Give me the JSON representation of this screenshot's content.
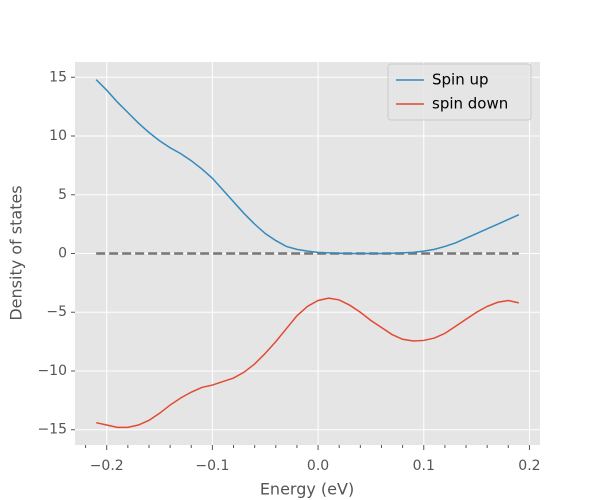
{
  "chart_data": {
    "type": "line",
    "xlabel": "Energy (eV)",
    "ylabel": "Density of states",
    "x": [
      -0.21,
      -0.2,
      -0.19,
      -0.18,
      -0.17,
      -0.16,
      -0.15,
      -0.14,
      -0.13,
      -0.12,
      -0.11,
      -0.1,
      -0.09,
      -0.08,
      -0.07,
      -0.06,
      -0.05,
      -0.04,
      -0.03,
      -0.02,
      -0.01,
      0.0,
      0.01,
      0.02,
      0.03,
      0.04,
      0.05,
      0.06,
      0.07,
      0.08,
      0.09,
      0.1,
      0.11,
      0.12,
      0.13,
      0.14,
      0.15,
      0.16,
      0.17,
      0.18,
      0.19
    ],
    "series": [
      {
        "name": "Spin up",
        "color": "#348ABD",
        "values": [
          14.8,
          13.9,
          12.9,
          12.0,
          11.1,
          10.3,
          9.6,
          9.0,
          8.5,
          7.9,
          7.2,
          6.4,
          5.4,
          4.4,
          3.4,
          2.5,
          1.7,
          1.1,
          0.6,
          0.35,
          0.2,
          0.1,
          0.05,
          0.02,
          0.0,
          0.0,
          0.0,
          0.0,
          0.02,
          0.05,
          0.1,
          0.2,
          0.35,
          0.6,
          0.9,
          1.3,
          1.7,
          2.1,
          2.5,
          2.9,
          3.3
        ]
      },
      {
        "name": "spin down",
        "color": "#E24A33",
        "values": [
          -14.4,
          -14.6,
          -14.8,
          -14.8,
          -14.6,
          -14.2,
          -13.6,
          -12.9,
          -12.3,
          -11.8,
          -11.4,
          -11.2,
          -10.9,
          -10.6,
          -10.1,
          -9.4,
          -8.5,
          -7.5,
          -6.4,
          -5.3,
          -4.5,
          -4.0,
          -3.8,
          -3.95,
          -4.4,
          -5.0,
          -5.7,
          -6.3,
          -6.9,
          -7.3,
          -7.45,
          -7.4,
          -7.2,
          -6.8,
          -6.2,
          -5.6,
          -5.0,
          -4.5,
          -4.15,
          -4.0,
          -4.2
        ]
      }
    ],
    "reference_line": {
      "y": 0,
      "x": [
        -0.21,
        0.19
      ],
      "color": "#777777",
      "style": "dashed"
    },
    "xlim": [
      -0.23,
      0.21
    ],
    "ylim": [
      -16.3,
      16.3
    ],
    "xticks": [
      {
        "value": -0.2,
        "label": "−0.2"
      },
      {
        "value": -0.1,
        "label": "−0.1"
      },
      {
        "value": 0,
        "label": "0.0"
      },
      {
        "value": 0.1,
        "label": "0.1"
      },
      {
        "value": 0.2,
        "label": "0.2"
      }
    ],
    "xminorticks": [
      -0.22,
      -0.18,
      -0.16,
      -0.14,
      -0.12,
      -0.08,
      -0.06,
      -0.04,
      -0.02,
      0.02,
      0.04,
      0.06,
      0.08,
      0.12,
      0.14,
      0.16,
      0.18
    ],
    "yticks": [
      {
        "value": -15,
        "label": "−15"
      },
      {
        "value": -10,
        "label": "−10"
      },
      {
        "value": -5,
        "label": "−5"
      },
      0,
      5,
      10,
      15
    ],
    "grid": true,
    "legend": "upper right"
  }
}
